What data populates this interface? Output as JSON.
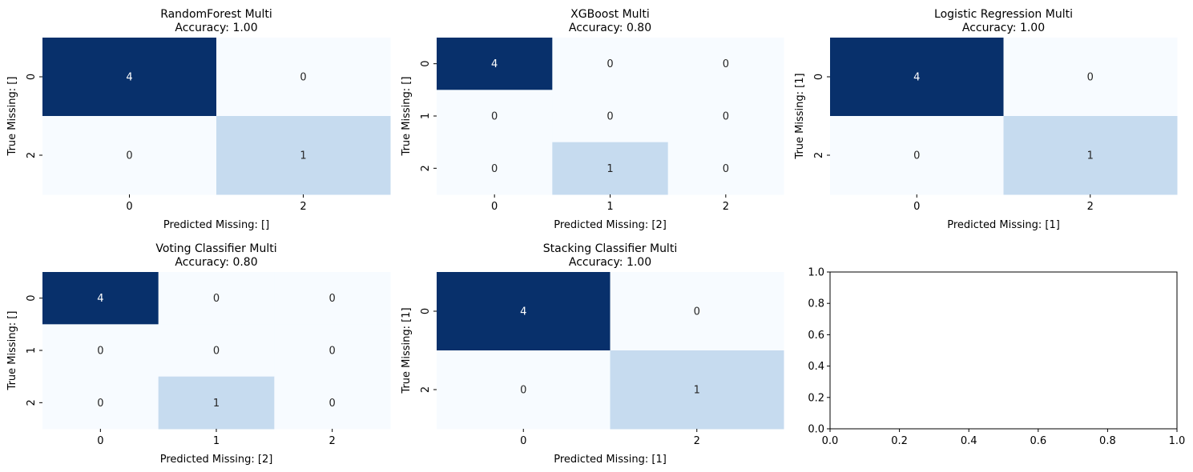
{
  "chart_data": [
    {
      "type": "heatmap",
      "title": "RandomForest Multi",
      "subtitle": "Accuracy: 1.00",
      "xlabel": "Predicted Missing: []",
      "ylabel": "True Missing: []",
      "x_ticks": [
        "0",
        "2"
      ],
      "y_ticks": [
        "0",
        "2"
      ],
      "values": [
        [
          4,
          0
        ],
        [
          0,
          1
        ]
      ],
      "colormap": "Blues",
      "vmax": 4
    },
    {
      "type": "heatmap",
      "title": "XGBoost Multi",
      "subtitle": "Accuracy: 0.80",
      "xlabel": "Predicted Missing: [2]",
      "ylabel": "True Missing: []",
      "x_ticks": [
        "0",
        "1",
        "2"
      ],
      "y_ticks": [
        "0",
        "1",
        "2"
      ],
      "values": [
        [
          4,
          0,
          0
        ],
        [
          0,
          0,
          0
        ],
        [
          0,
          1,
          0
        ]
      ],
      "colormap": "Blues",
      "vmax": 4
    },
    {
      "type": "heatmap",
      "title": "Logistic Regression Multi",
      "subtitle": "Accuracy: 1.00",
      "xlabel": "Predicted Missing: [1]",
      "ylabel": "True Missing: [1]",
      "x_ticks": [
        "0",
        "2"
      ],
      "y_ticks": [
        "0",
        "2"
      ],
      "values": [
        [
          4,
          0
        ],
        [
          0,
          1
        ]
      ],
      "colormap": "Blues",
      "vmax": 4
    },
    {
      "type": "heatmap",
      "title": "Voting Classifier Multi",
      "subtitle": "Accuracy: 0.80",
      "xlabel": "Predicted Missing: [2]",
      "ylabel": "True Missing: []",
      "x_ticks": [
        "0",
        "1",
        "2"
      ],
      "y_ticks": [
        "0",
        "1",
        "2"
      ],
      "values": [
        [
          4,
          0,
          0
        ],
        [
          0,
          0,
          0
        ],
        [
          0,
          1,
          0
        ]
      ],
      "colormap": "Blues",
      "vmax": 4
    },
    {
      "type": "heatmap",
      "title": "Stacking Classifier Multi",
      "subtitle": "Accuracy: 1.00",
      "xlabel": "Predicted Missing: [1]",
      "ylabel": "True Missing: [1]",
      "x_ticks": [
        "0",
        "2"
      ],
      "y_ticks": [
        "0",
        "2"
      ],
      "values": [
        [
          4,
          0
        ],
        [
          0,
          1
        ]
      ],
      "colormap": "Blues",
      "vmax": 4
    },
    {
      "type": "empty",
      "xlim": [
        0.0,
        1.0
      ],
      "ylim": [
        0.0,
        1.0
      ],
      "x_ticks": [
        "0.0",
        "0.2",
        "0.4",
        "0.6",
        "0.8",
        "1.0"
      ],
      "y_ticks": [
        "0.0",
        "0.2",
        "0.4",
        "0.6",
        "0.8",
        "1.0"
      ]
    }
  ],
  "colors": {
    "high": "#08306b",
    "low": "#f7fbff",
    "mid": "#c6dbef",
    "text_on_dark": "#ffffff",
    "text_on_light": "#262626"
  }
}
